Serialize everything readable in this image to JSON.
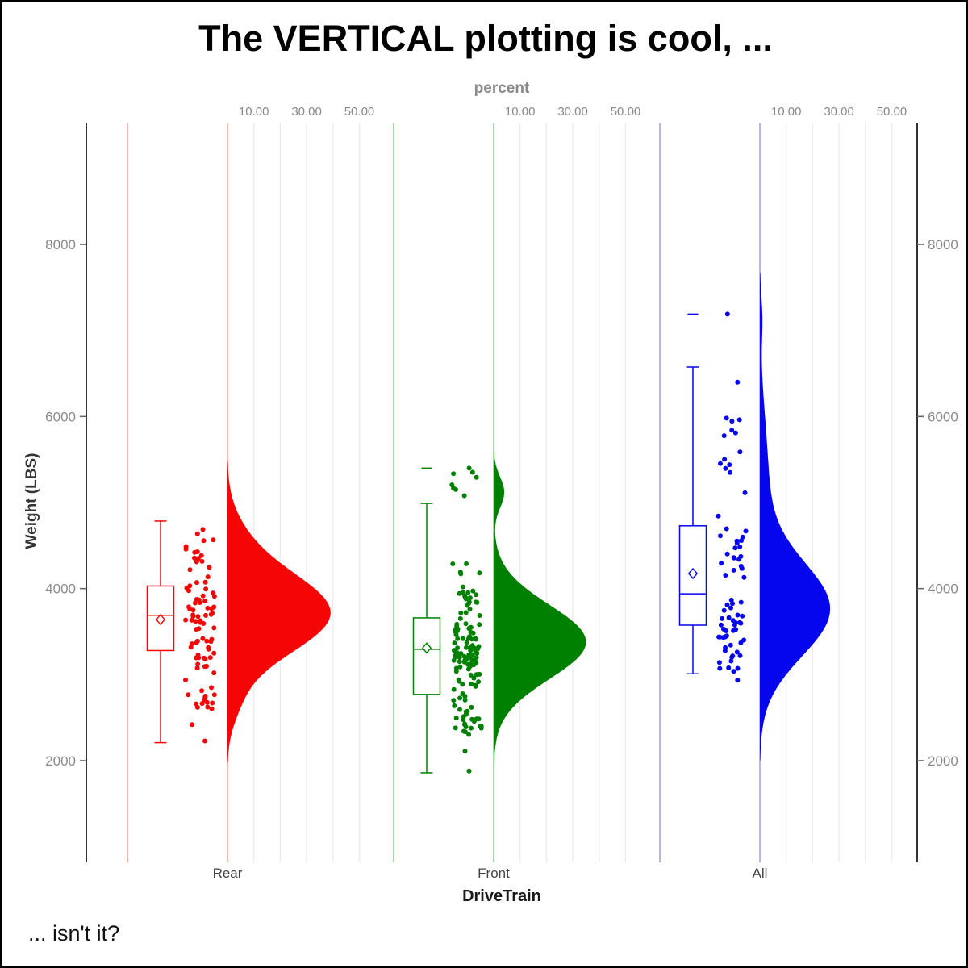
{
  "title": "The VERTICAL plotting is cool, ...",
  "footnote": "... isn't it?",
  "top_axis": {
    "label": "percent",
    "tick_labels": [
      "10.00",
      "30.00",
      "50.00"
    ],
    "tick_values": [
      10,
      30,
      50
    ],
    "gridline_values": [
      10,
      20,
      30,
      40,
      50
    ]
  },
  "y_axis": {
    "label": "Weight (LBS)",
    "tick_labels": [
      "2000",
      "4000",
      "6000",
      "8000"
    ],
    "tick_values": [
      2000,
      4000,
      6000,
      8000
    ],
    "shown_on": [
      "left",
      "right"
    ]
  },
  "x_axis": {
    "label": "DriveTrain",
    "categories": [
      "Rear",
      "Front",
      "All"
    ]
  },
  "colors": {
    "grid": "#ececec",
    "axis_line": "#000000",
    "tick_text": "#8a8a8a",
    "label_text": "#333333"
  },
  "chart_data": {
    "type": "raincloud (vertical box + jitter + half-density)",
    "value_variable": "Weight (LBS)",
    "group_variable": "DriveTrain",
    "percent_axis_range": [
      0,
      50
    ],
    "groups": [
      {
        "name": "Rear",
        "color": "#f50505",
        "light_color": "#f9b4b4",
        "box": {
          "low_whisker": 2210,
          "q1": 3280,
          "median": 3690,
          "q3": 4030,
          "high_whisker": 4785
        },
        "mean": 3640,
        "outliers": [],
        "density_peak_percent": 39,
        "density_components": [
          {
            "mu": 3716,
            "sd": 470,
            "amp": 39
          },
          {
            "mu": 4600,
            "sd": 330,
            "amp": 3
          },
          {
            "mu": 2650,
            "sd": 260,
            "amp": 2.5
          }
        ],
        "jitter": {
          "seed": 12,
          "clusters": [
            {
              "n": 16,
              "mu": 4420,
              "sd": 190,
              "min": 4120,
              "max": 4780
            },
            {
              "n": 58,
              "mu": 3600,
              "sd": 340,
              "min": 2920,
              "max": 4120
            },
            {
              "n": 14,
              "mu": 2760,
              "sd": 140,
              "min": 2560,
              "max": 2920
            }
          ],
          "singles": [
            2420,
            2230
          ]
        }
      },
      {
        "name": "Front",
        "color": "#008000",
        "light_color": "#abd3ab",
        "box": {
          "low_whisker": 1860,
          "q1": 2770,
          "median": 3295,
          "q3": 3660,
          "high_whisker": 4990
        },
        "mean": 3310,
        "outliers": [
          5400
        ],
        "density_peak_percent": 35,
        "density_components": [
          {
            "mu": 3380,
            "sd": 430,
            "amp": 35
          },
          {
            "mu": 5120,
            "sd": 180,
            "amp": 4
          }
        ],
        "jitter": {
          "seed": 77,
          "clusters": [
            {
              "n": 8,
              "mu": 5150,
              "sd": 160,
              "min": 4910,
              "max": 5400
            },
            {
              "n": 22,
              "mu": 4000,
              "sd": 170,
              "min": 3760,
              "max": 4400
            },
            {
              "n": 88,
              "mu": 3230,
              "sd": 290,
              "min": 2710,
              "max": 3760
            },
            {
              "n": 26,
              "mu": 2510,
              "sd": 140,
              "min": 2260,
              "max": 2710
            }
          ],
          "singles": [
            2110,
            1880
          ]
        }
      },
      {
        "name": "All",
        "color": "#0505ee",
        "light_color": "#b6b6ef",
        "box": {
          "low_whisker": 3010,
          "q1": 3575,
          "median": 3940,
          "q3": 4730,
          "high_whisker": 6575
        },
        "mean": 4175,
        "outliers": [
          7190
        ],
        "density_peak_percent": 26,
        "density_components": [
          {
            "mu": 3750,
            "sd": 540,
            "amp": 26
          },
          {
            "mu": 5200,
            "sd": 800,
            "amp": 3.2
          },
          {
            "mu": 7150,
            "sd": 260,
            "amp": 0.8
          }
        ],
        "jitter": {
          "seed": 5,
          "clusters": [
            {
              "n": 13,
              "mu": 5450,
              "sd": 430,
              "min": 4880,
              "max": 6420
            },
            {
              "n": 21,
              "mu": 4380,
              "sd": 290,
              "min": 3920,
              "max": 4880
            },
            {
              "n": 41,
              "mu": 3480,
              "sd": 290,
              "min": 2890,
              "max": 3920
            }
          ],
          "singles": [
            7190,
            6400
          ]
        }
      }
    ]
  }
}
